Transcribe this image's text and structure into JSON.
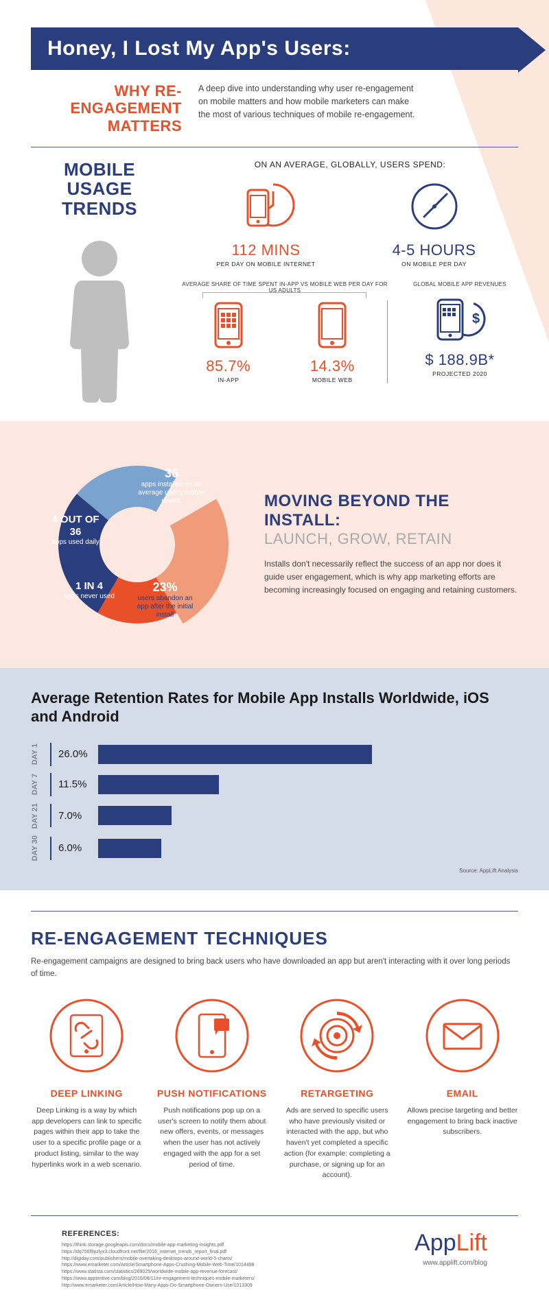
{
  "title": "Honey, I Lost My App's Users:",
  "subtitle_line1": "WHY RE-ENGAGEMENT",
  "subtitle_line2": "MATTERS",
  "intro": "A deep dive into understanding why user re-engagement on mobile matters and how mobile marketers can make the most of various techniques of mobile re-engagement.",
  "colors": {
    "navy": "#2a3d7c",
    "orange": "#e8502a",
    "peach": "#fce8e1",
    "lightblue": "#d5dce9",
    "grey": "#bfbfbf"
  },
  "trends": {
    "heading_l1": "MOBILE USAGE",
    "heading_l2": "TRENDS",
    "caption": "ON AN AVERAGE, GLOBALLY, USERS SPEND:",
    "stat1": {
      "value": "112 MINS",
      "label": "PER DAY ON MOBILE INTERNET",
      "color": "#e8502a"
    },
    "stat2": {
      "value": "4-5 HOURS",
      "label": "ON MOBILE PER DAY",
      "color": "#2a3d7c"
    },
    "subcap_left": "AVERAGE SHARE OF TIME SPENT IN-APP VS MOBILE WEB PER DAY FOR US ADULTS",
    "subcap_right": "GLOBAL MOBILE APP REVENUES",
    "stat3": {
      "value": "85.7%",
      "label": "IN-APP",
      "color": "#e8502a"
    },
    "stat4": {
      "value": "14.3%",
      "label": "MOBILE WEB",
      "color": "#e8502a"
    },
    "stat5": {
      "value": "$ 188.9B*",
      "label": "PROJECTED 2020",
      "color": "#2a3d7c"
    }
  },
  "donut": {
    "heading1": "MOVING BEYOND THE INSTALL:",
    "heading2": "LAUNCH, GROW, RETAIN",
    "body": "Installs don't necessarily reflect the success of an app nor does it guide user engagement, which is why app marketing efforts are becoming increasingly focused on engaging and retaining customers.",
    "segments": [
      {
        "big": "36",
        "text": "apps installed on an average user's mobile device",
        "color": "#7aa3d0",
        "angle_start": -50,
        "angle_end": 30
      },
      {
        "big": "4 OUT OF 36",
        "text": "apps used daily",
        "color": "#2a3d7c",
        "angle_start": -150,
        "angle_end": -50
      },
      {
        "big": "1 IN 4",
        "text": "apps never used",
        "color": "#e8502a",
        "angle_start": 150,
        "angle_end": 210
      },
      {
        "big": "23%",
        "text": "users abandon an app after the initial install",
        "color": "#f09b7a",
        "angle_start": 60,
        "angle_end": 150
      }
    ]
  },
  "retention": {
    "heading": "Average Retention Rates for Mobile App Installs Worldwide, iOS and Android",
    "source": "Source: AppLift Analysis",
    "max": 30,
    "bars": [
      {
        "day": "DAY 1",
        "value": 26.0,
        "label": "26.0%"
      },
      {
        "day": "DAY 7",
        "value": 11.5,
        "label": "11.5%"
      },
      {
        "day": "DAY 21",
        "value": 7.0,
        "label": "7.0%"
      },
      {
        "day": "DAY 30",
        "value": 6.0,
        "label": "6.0%"
      }
    ],
    "bar_color": "#2a3d7c"
  },
  "techniques": {
    "heading": "RE-ENGAGEMENT TECHNIQUES",
    "sub": "Re-engagement campaigns are designed to bring back users who have downloaded an app but aren't interacting with it over long periods of time.",
    "items": [
      {
        "title": "DEEP LINKING",
        "desc": "Deep Linking is a way by which app developers can link to specific pages within their app to take the user to a specific profile page or a product listing, similar to the way hyperlinks work in a web scenario.",
        "icon": "link"
      },
      {
        "title": "PUSH NOTIFICATIONS",
        "desc": "Push notifications pop up on a user's screen to notify them about new offers, events, or messages when the user has not actively engaged with the app for a set period of time.",
        "icon": "push"
      },
      {
        "title": "RETARGETING",
        "desc": "Ads are served to specific users who have previously visited or interacted with the app, but who haven't yet completed a specific action (for example: completing a purchase, or signing up for an account).",
        "icon": "target"
      },
      {
        "title": "EMAIL",
        "desc": "Allows precise targeting and better engagement to bring back inactive subscribers.",
        "icon": "email"
      }
    ]
  },
  "refs": {
    "heading": "REFERENCES:",
    "items": [
      "https://think.storage.googleapis.com/docs/mobile-app-marketing-insights.pdf",
      "https://dq756f9pzlyx3.cloudfront.net/file/2016_internet_trends_report_final.pdf",
      "http://digiday.com/publishers/mobile-overtaking-desktops-around-world-5-charts/",
      "https://www.emarketer.com/Article/Smartphone-Apps-Crushing-Mobile-Web-Time/1014498",
      "https://www.statista.com/statistics/269025/worldwide-mobile-app-revenue-forecast/",
      "https://www.apptentive.com/blog/2016/08/11/re-engagement-techniques-mobile-marketers/",
      "http://www.emarketer.com/Article/How-Many-Apps-Do-Smartphone-Owners-Use/1013309"
    ]
  },
  "logo": {
    "part1": "App",
    "part2": "Lift",
    "url": "www.applift.com/blog"
  }
}
